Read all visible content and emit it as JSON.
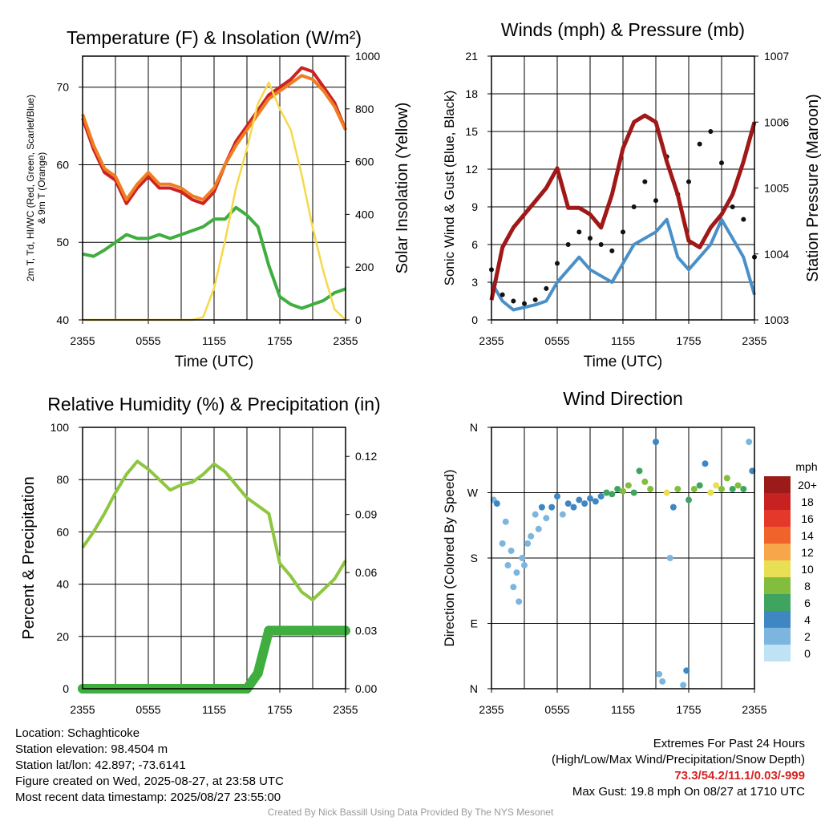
{
  "chart_data": [
    {
      "type": "line",
      "title": "Temperature (F) & Insolation (W/m²)",
      "xlabel": "Time (UTC)",
      "ylabel_left": "2m T, Td, HI/WC (Red, Green, Scarlet/Blue) & 9m T (Orange)",
      "ylabel_right": "Solar Insolation (Yellow)",
      "x_ticks": [
        "2355",
        "0555",
        "1155",
        "1755",
        "2355"
      ],
      "ylim_left": [
        40,
        74
      ],
      "ylim_right": [
        0,
        1000
      ],
      "y_ticks_left": [
        40,
        50,
        60,
        70
      ],
      "y_ticks_right": [
        0,
        200,
        400,
        600,
        800,
        1000
      ],
      "grid": true,
      "x_hours": [
        0,
        1,
        2,
        3,
        4,
        5,
        6,
        7,
        8,
        9,
        10,
        11,
        12,
        13,
        14,
        15,
        16,
        17,
        18,
        19,
        20,
        21,
        22,
        23,
        24
      ],
      "series": [
        {
          "name": "2m T",
          "color": "#cc2222",
          "axis": "left",
          "values": [
            66,
            62,
            59,
            58,
            55,
            57,
            58.5,
            57,
            57,
            56.5,
            55.5,
            55,
            56.5,
            60,
            63,
            65,
            67,
            69,
            70,
            71,
            72.5,
            72,
            70,
            68,
            64.5
          ]
        },
        {
          "name": "9m T",
          "color": "#ef7d22",
          "axis": "left",
          "values": [
            66.5,
            62.5,
            59.5,
            58.5,
            55.5,
            57.5,
            59,
            57.5,
            57.5,
            57,
            56,
            55.5,
            57,
            60,
            62.5,
            64.5,
            66.5,
            68.5,
            69.5,
            70.5,
            71.5,
            71,
            69.5,
            67.5,
            64.5
          ]
        },
        {
          "name": "Td",
          "color": "#3fae3f",
          "axis": "left",
          "values": [
            48.5,
            48.2,
            49,
            50,
            51,
            50.5,
            50.5,
            51,
            50.5,
            51,
            51.5,
            52,
            53,
            53,
            54.5,
            53.5,
            52,
            47,
            43,
            42,
            41.5,
            42,
            42.5,
            43.5,
            44
          ]
        },
        {
          "name": "Solar Insolation",
          "color": "#f5d94a",
          "axis": "right",
          "values": [
            0,
            0,
            0,
            0,
            0,
            0,
            0,
            0,
            0,
            0,
            0,
            10,
            120,
            300,
            500,
            650,
            820,
            900,
            800,
            720,
            550,
            350,
            180,
            40,
            0
          ]
        }
      ]
    },
    {
      "type": "line",
      "title": "Winds (mph) & Pressure (mb)",
      "xlabel": "Time (UTC)",
      "ylabel_left": "Sonic Wind & Gust (Blue, Black)",
      "ylabel_right": "Station Pressure (Maroon)",
      "x_ticks": [
        "2355",
        "0555",
        "1155",
        "1755",
        "2355"
      ],
      "ylim_left": [
        0,
        21
      ],
      "ylim_right": [
        1003,
        1007
      ],
      "y_ticks_left": [
        0,
        3,
        6,
        9,
        12,
        15,
        18,
        21
      ],
      "y_ticks_right": [
        1003,
        1004,
        1005,
        1006,
        1007
      ],
      "grid": true,
      "x_hours": [
        0,
        1,
        2,
        3,
        4,
        5,
        6,
        7,
        8,
        9,
        10,
        11,
        12,
        13,
        14,
        15,
        16,
        17,
        18,
        19,
        20,
        21,
        22,
        23,
        24
      ],
      "series": [
        {
          "name": "Sonic Wind",
          "color": "#4a90c8",
          "axis": "left",
          "values": [
            3,
            1.5,
            0.8,
            1,
            1.2,
            1.5,
            3,
            4,
            5,
            4,
            3.5,
            3,
            4.5,
            6,
            6.5,
            7,
            8,
            5,
            4,
            5,
            6,
            8,
            6.5,
            5,
            2
          ]
        },
        {
          "name": "Gust",
          "color": "#111111",
          "axis": "left",
          "values": [
            4,
            2,
            1.5,
            1.3,
            1.6,
            2.5,
            4.5,
            6,
            7,
            6.5,
            6,
            5.5,
            7,
            9,
            11,
            9.5,
            13,
            10,
            11,
            14,
            15,
            12.5,
            9,
            8,
            5
          ]
        },
        {
          "name": "Station Pressure",
          "color": "#a01818",
          "axis": "right",
          "values": [
            1003.3,
            1004.1,
            1004.4,
            1004.6,
            1004.8,
            1005.0,
            1005.3,
            1004.7,
            1004.7,
            1004.6,
            1004.4,
            1004.9,
            1005.6,
            1006.0,
            1006.1,
            1006.0,
            1005.4,
            1004.9,
            1004.2,
            1004.1,
            1004.4,
            1004.6,
            1004.9,
            1005.4,
            1006.0
          ]
        }
      ]
    },
    {
      "type": "line",
      "title": "Relative Humidity (%) & Precipitation (in)",
      "xlabel": "",
      "ylabel_left": "Percent & Precipitation",
      "x_ticks": [
        "2355",
        "0555",
        "1155",
        "1755",
        "2355"
      ],
      "ylim_left": [
        0,
        100
      ],
      "ylim_right": [
        0,
        0.135
      ],
      "y_ticks_left": [
        0,
        20,
        40,
        60,
        80,
        100
      ],
      "y_ticks_right": [
        0.0,
        0.03,
        0.06,
        0.09,
        0.12
      ],
      "grid": true,
      "x_hours": [
        0,
        1,
        2,
        3,
        4,
        5,
        6,
        7,
        8,
        9,
        10,
        11,
        12,
        13,
        14,
        15,
        16,
        17,
        18,
        19,
        20,
        21,
        22,
        23,
        24
      ],
      "series": [
        {
          "name": "Relative Humidity",
          "color": "#8dc63f",
          "axis": "left",
          "values": [
            54,
            60,
            67,
            75,
            82,
            87,
            84,
            80,
            76,
            78,
            79,
            82,
            86,
            83,
            78,
            73,
            70,
            67,
            48,
            43,
            37,
            34,
            38,
            42,
            49
          ]
        },
        {
          "name": "Precipitation",
          "color": "#3fae3f",
          "axis": "right",
          "values": [
            0,
            0,
            0,
            0,
            0,
            0,
            0,
            0,
            0,
            0,
            0,
            0,
            0,
            0,
            0,
            0,
            0.008,
            0.03,
            0.03,
            0.03,
            0.03,
            0.03,
            0.03,
            0.03,
            0.03
          ]
        }
      ]
    },
    {
      "type": "scatter",
      "title": "Wind Direction",
      "xlabel": "",
      "ylabel_left": "Direction (Colored By Speed)",
      "x_ticks": [
        "2355",
        "0555",
        "1155",
        "1755",
        "2355"
      ],
      "y_ticks": [
        "N",
        "E",
        "S",
        "W",
        "N"
      ],
      "ylim_left": [
        0,
        360
      ],
      "grid": true,
      "legend_title": "mph",
      "legend_labels": [
        "20+",
        "18",
        "16",
        "14",
        "12",
        "10",
        "8",
        "6",
        "4",
        "2",
        "0"
      ],
      "legend_colors": [
        "#9b1b1b",
        "#c82121",
        "#e3382a",
        "#f0632b",
        "#f7a649",
        "#e8df55",
        "#82bd3d",
        "#3fa460",
        "#3f87c2",
        "#7cb6df",
        "#bfe3f5"
      ],
      "legend_position": "right",
      "points": [
        [
          0.2,
          260,
          2
        ],
        [
          0.5,
          255,
          3
        ],
        [
          1.0,
          200,
          1
        ],
        [
          1.3,
          230,
          1
        ],
        [
          1.5,
          170,
          1
        ],
        [
          1.8,
          190,
          1
        ],
        [
          2.0,
          140,
          2
        ],
        [
          2.3,
          160,
          1
        ],
        [
          2.5,
          120,
          1
        ],
        [
          2.8,
          180,
          1
        ],
        [
          3.0,
          170,
          1
        ],
        [
          3.3,
          200,
          1
        ],
        [
          3.6,
          210,
          2
        ],
        [
          4.0,
          240,
          2
        ],
        [
          4.3,
          220,
          2
        ],
        [
          4.6,
          250,
          3
        ],
        [
          5.0,
          235,
          2
        ],
        [
          5.5,
          250,
          3
        ],
        [
          6.0,
          265,
          3
        ],
        [
          6.5,
          240,
          2
        ],
        [
          7.0,
          255,
          3
        ],
        [
          7.5,
          250,
          3
        ],
        [
          8.0,
          260,
          4
        ],
        [
          8.5,
          255,
          3
        ],
        [
          9.0,
          262,
          4
        ],
        [
          9.5,
          258,
          4
        ],
        [
          10.0,
          265,
          4
        ],
        [
          10.5,
          270,
          5
        ],
        [
          11.0,
          268,
          6
        ],
        [
          11.5,
          275,
          6
        ],
        [
          12.0,
          272,
          7
        ],
        [
          12.5,
          280,
          7
        ],
        [
          13.0,
          270,
          6
        ],
        [
          13.5,
          300,
          5
        ],
        [
          14.0,
          285,
          7
        ],
        [
          14.5,
          275,
          8
        ],
        [
          15.0,
          340,
          3
        ],
        [
          15.3,
          20,
          2
        ],
        [
          15.6,
          10,
          2
        ],
        [
          16.0,
          270,
          9
        ],
        [
          16.3,
          180,
          1
        ],
        [
          16.6,
          250,
          4
        ],
        [
          17.0,
          275,
          8
        ],
        [
          17.5,
          5,
          2
        ],
        [
          17.8,
          25,
          3
        ],
        [
          18.0,
          260,
          5
        ],
        [
          18.5,
          275,
          8
        ],
        [
          19.0,
          280,
          6
        ],
        [
          19.5,
          310,
          3
        ],
        [
          20.0,
          270,
          10
        ],
        [
          20.5,
          280,
          9
        ],
        [
          21.0,
          275,
          8
        ],
        [
          21.5,
          290,
          7
        ],
        [
          22.0,
          275,
          6
        ],
        [
          22.5,
          280,
          7
        ],
        [
          23.0,
          275,
          6
        ],
        [
          23.5,
          340,
          2
        ],
        [
          23.8,
          300,
          3
        ]
      ]
    }
  ],
  "info": {
    "location": "Location: Schaghticoke",
    "elevation": "Station elevation: 98.4504 m",
    "latlon": "Station lat/lon: 42.897; -73.6141",
    "created": "Figure created on Wed, 2025-08-27, at 23:58 UTC",
    "recent": "Most recent data timestamp: 2025/08/27 23:55:00"
  },
  "extremes": {
    "title": "Extremes For Past 24 Hours",
    "subtitle": "(High/Low/Max Wind/Precipitation/Snow Depth)",
    "values": "73.3/54.2/11.1/0.03/-999",
    "gust": "Max Gust: 19.8 mph On 08/27 at 1710 UTC"
  },
  "credit": "Created By Nick Bassill Using Data Provided By The NYS Mesonet"
}
